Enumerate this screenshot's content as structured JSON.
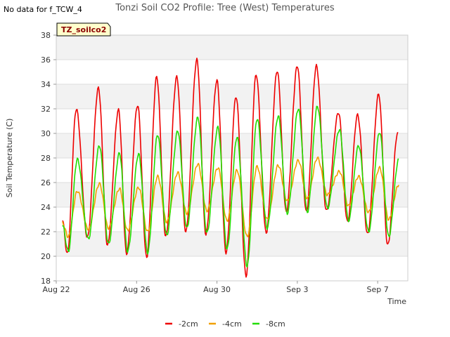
{
  "note": "No data for f_TCW_4",
  "chart_data": {
    "type": "line",
    "title": "Tonzi Soil CO2 Profile: Tree (West) Temperatures",
    "xlabel": "Time",
    "ylabel": "Soil Temperature (C)",
    "tag": "TZ_soilco2",
    "ylim": [
      18,
      38
    ],
    "y_ticks": [
      18,
      20,
      22,
      24,
      26,
      28,
      30,
      32,
      34,
      36,
      38
    ],
    "xlim": [
      0,
      17.5
    ],
    "x_tick_positions": [
      0,
      4,
      8,
      12,
      16
    ],
    "x_tick_labels": [
      "Aug 22",
      "Aug 26",
      "Aug 30",
      "Sep 3",
      "Sep 7"
    ],
    "x_units": "days since Aug 22",
    "grid": true,
    "legend_position": "bottom-center",
    "series": [
      {
        "name": "-2cm",
        "color": "#ee0000",
        "x": [
          0.3,
          0.55,
          1.0,
          1.55,
          2.1,
          2.55,
          3.1,
          3.5,
          4.05,
          4.5,
          5.0,
          5.45,
          6.0,
          6.45,
          7.0,
          7.45,
          8.0,
          8.45,
          8.95,
          9.45,
          9.95,
          10.45,
          11.0,
          11.45,
          12.0,
          12.45,
          12.95,
          13.45,
          14.05,
          14.5,
          15.0,
          15.5,
          16.05,
          16.5,
          17.0
        ],
        "values": [
          23.0,
          20.2,
          32.0,
          21.5,
          33.7,
          20.9,
          31.9,
          20.2,
          32.3,
          19.9,
          34.6,
          21.6,
          34.6,
          22.0,
          36.0,
          21.8,
          34.3,
          20.3,
          33.0,
          18.4,
          34.8,
          21.9,
          35.1,
          23.6,
          35.5,
          23.6,
          35.5,
          23.7,
          31.7,
          22.8,
          31.5,
          21.8,
          33.2,
          20.9,
          30.1
        ]
      },
      {
        "name": "-4cm",
        "color": "#f0a000",
        "x": [
          0.3,
          0.6,
          1.05,
          1.6,
          2.15,
          2.6,
          3.15,
          3.55,
          4.1,
          4.55,
          5.05,
          5.5,
          6.05,
          6.5,
          7.05,
          7.5,
          8.05,
          8.5,
          9.0,
          9.5,
          10.0,
          10.5,
          11.05,
          11.5,
          12.05,
          12.5,
          13.0,
          13.5,
          14.1,
          14.55,
          15.05,
          15.55,
          16.1,
          16.55,
          17.05
        ],
        "values": [
          22.7,
          21.6,
          25.3,
          22.2,
          25.9,
          22.3,
          25.5,
          22.1,
          25.6,
          22.0,
          26.5,
          22.8,
          26.8,
          23.5,
          27.5,
          23.7,
          27.2,
          22.9,
          27.0,
          21.6,
          27.3,
          23.0,
          27.4,
          24.5,
          27.8,
          24.7,
          28.0,
          25.0,
          26.9,
          24.1,
          26.5,
          23.6,
          27.2,
          23.0,
          25.8
        ]
      },
      {
        "name": "-8cm",
        "color": "#22dd00",
        "x": [
          0.3,
          0.6,
          1.05,
          1.6,
          2.15,
          2.6,
          3.15,
          3.55,
          4.1,
          4.55,
          5.05,
          5.5,
          6.05,
          6.5,
          7.05,
          7.5,
          8.05,
          8.5,
          9.0,
          9.5,
          10.0,
          10.5,
          11.05,
          11.5,
          12.05,
          12.5,
          13.0,
          13.5,
          14.1,
          14.55,
          15.05,
          15.55,
          16.1,
          16.55,
          17.05
        ],
        "values": [
          22.6,
          20.4,
          27.9,
          21.4,
          29.0,
          21.0,
          28.4,
          20.4,
          28.3,
          20.3,
          29.9,
          21.7,
          30.2,
          22.3,
          31.3,
          21.9,
          30.5,
          20.6,
          29.7,
          19.2,
          31.2,
          22.3,
          31.4,
          23.5,
          32.0,
          23.6,
          32.2,
          23.9,
          30.3,
          22.9,
          29.0,
          22.0,
          30.1,
          21.6,
          27.9
        ]
      }
    ]
  }
}
